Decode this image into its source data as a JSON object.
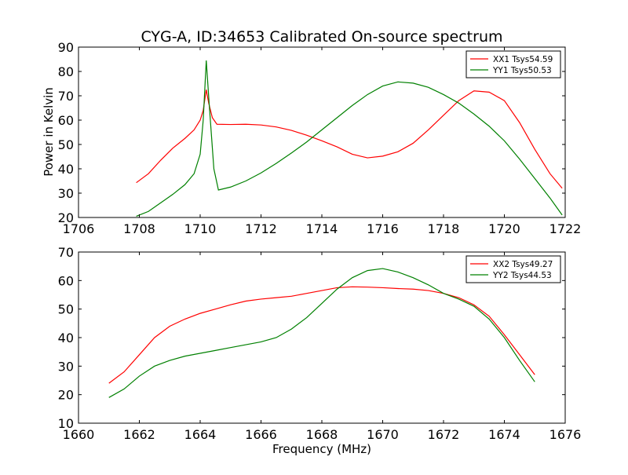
{
  "figure": {
    "title": "CYG-A, ID:34653 Calibrated On-source spectrum",
    "ylabel": "Power in Kelvin",
    "xlabel": "Frequency (MHz)"
  },
  "colors": {
    "red": "#ff0000",
    "green": "#008000"
  },
  "chart_data": [
    {
      "type": "line",
      "title": "CYG-A, ID:34653 Calibrated On-source spectrum",
      "xlabel": "",
      "ylabel": "Power in Kelvin",
      "xlim": [
        1706,
        1722
      ],
      "ylim": [
        20,
        90
      ],
      "xticks": [
        1706,
        1708,
        1710,
        1712,
        1714,
        1716,
        1718,
        1720,
        1722
      ],
      "yticks": [
        20,
        30,
        40,
        50,
        60,
        70,
        80,
        90
      ],
      "legend": "top-right",
      "grid": false,
      "series": [
        {
          "name": "XX1 Tsys54.59",
          "color": "#ff0000",
          "points": [
            [
              1707.9,
              34.3
            ],
            [
              1708.3,
              38
            ],
            [
              1708.7,
              43.5
            ],
            [
              1709.1,
              48.5
            ],
            [
              1709.5,
              52.5
            ],
            [
              1709.8,
              56
            ],
            [
              1710.0,
              60
            ],
            [
              1710.1,
              64
            ],
            [
              1710.2,
              72.5
            ],
            [
              1710.28,
              67
            ],
            [
              1710.4,
              61
            ],
            [
              1710.55,
              58.3
            ],
            [
              1711,
              58.2
            ],
            [
              1711.5,
              58.3
            ],
            [
              1712,
              58
            ],
            [
              1712.5,
              57.2
            ],
            [
              1713,
              55.8
            ],
            [
              1713.5,
              53.8
            ],
            [
              1714,
              51.5
            ],
            [
              1714.5,
              49
            ],
            [
              1715,
              46
            ],
            [
              1715.5,
              44.5
            ],
            [
              1716,
              45.2
            ],
            [
              1716.5,
              47
            ],
            [
              1717,
              50.5
            ],
            [
              1717.5,
              56
            ],
            [
              1718,
              62
            ],
            [
              1718.5,
              68
            ],
            [
              1719,
              72
            ],
            [
              1719.5,
              71.5
            ],
            [
              1720,
              68
            ],
            [
              1720.5,
              59
            ],
            [
              1721,
              48
            ],
            [
              1721.5,
              38
            ],
            [
              1721.9,
              32
            ]
          ]
        },
        {
          "name": "YY1 Tsys50.53",
          "color": "#008000",
          "points": [
            [
              1707.9,
              20.5
            ],
            [
              1708.3,
              22.5
            ],
            [
              1708.7,
              26
            ],
            [
              1709.1,
              29.5
            ],
            [
              1709.5,
              33.5
            ],
            [
              1709.8,
              38
            ],
            [
              1710.0,
              46
            ],
            [
              1710.1,
              60
            ],
            [
              1710.2,
              84.5
            ],
            [
              1710.3,
              66
            ],
            [
              1710.45,
              40
            ],
            [
              1710.6,
              31.3
            ],
            [
              1711,
              32.5
            ],
            [
              1711.5,
              35
            ],
            [
              1712,
              38.3
            ],
            [
              1712.5,
              42.2
            ],
            [
              1713,
              46.5
            ],
            [
              1713.5,
              51
            ],
            [
              1714,
              56
            ],
            [
              1714.5,
              61
            ],
            [
              1715,
              66
            ],
            [
              1715.5,
              70.5
            ],
            [
              1716,
              74
            ],
            [
              1716.5,
              75.7
            ],
            [
              1717,
              75.2
            ],
            [
              1717.5,
              73.5
            ],
            [
              1718,
              70.5
            ],
            [
              1718.5,
              67
            ],
            [
              1719,
              62.5
            ],
            [
              1719.5,
              57.5
            ],
            [
              1720,
              51.5
            ],
            [
              1720.5,
              44
            ],
            [
              1721,
              36
            ],
            [
              1721.5,
              28
            ],
            [
              1721.9,
              21
            ]
          ]
        }
      ]
    },
    {
      "type": "line",
      "title": "",
      "xlabel": "Frequency (MHz)",
      "ylabel": "",
      "xlim": [
        1660,
        1676
      ],
      "ylim": [
        10,
        70
      ],
      "xticks": [
        1660,
        1662,
        1664,
        1666,
        1668,
        1670,
        1672,
        1674,
        1676
      ],
      "yticks": [
        10,
        20,
        30,
        40,
        50,
        60,
        70
      ],
      "legend": "top-right",
      "grid": false,
      "series": [
        {
          "name": "XX2 Tsys49.27",
          "color": "#ff0000",
          "points": [
            [
              1661,
              24
            ],
            [
              1661.5,
              28
            ],
            [
              1662,
              34
            ],
            [
              1662.5,
              40
            ],
            [
              1663,
              44
            ],
            [
              1663.5,
              46.5
            ],
            [
              1664,
              48.5
            ],
            [
              1664.5,
              50
            ],
            [
              1665,
              51.5
            ],
            [
              1665.5,
              52.8
            ],
            [
              1666,
              53.5
            ],
            [
              1666.5,
              54
            ],
            [
              1667,
              54.5
            ],
            [
              1667.5,
              55.5
            ],
            [
              1668,
              56.5
            ],
            [
              1668.5,
              57.5
            ],
            [
              1669,
              57.8
            ],
            [
              1669.5,
              57.7
            ],
            [
              1670,
              57.5
            ],
            [
              1670.5,
              57.2
            ],
            [
              1671,
              57
            ],
            [
              1671.5,
              56.5
            ],
            [
              1672,
              55.5
            ],
            [
              1672.5,
              54
            ],
            [
              1673,
              51.5
            ],
            [
              1673.5,
              47.5
            ],
            [
              1674,
              41
            ],
            [
              1674.5,
              34
            ],
            [
              1675,
              27
            ]
          ]
        },
        {
          "name": "YY2 Tsys44.53",
          "color": "#008000",
          "points": [
            [
              1661,
              19
            ],
            [
              1661.5,
              22
            ],
            [
              1662,
              26.5
            ],
            [
              1662.5,
              30
            ],
            [
              1663,
              32
            ],
            [
              1663.5,
              33.5
            ],
            [
              1664,
              34.5
            ],
            [
              1664.5,
              35.5
            ],
            [
              1665,
              36.5
            ],
            [
              1665.5,
              37.5
            ],
            [
              1666,
              38.5
            ],
            [
              1666.5,
              40
            ],
            [
              1667,
              43
            ],
            [
              1667.5,
              47
            ],
            [
              1668,
              52
            ],
            [
              1668.5,
              57
            ],
            [
              1669,
              61
            ],
            [
              1669.5,
              63.5
            ],
            [
              1670,
              64.2
            ],
            [
              1670.5,
              63
            ],
            [
              1671,
              61
            ],
            [
              1671.5,
              58.5
            ],
            [
              1672,
              55.5
            ],
            [
              1672.5,
              53.5
            ],
            [
              1673,
              51
            ],
            [
              1673.5,
              46.5
            ],
            [
              1674,
              40
            ],
            [
              1674.5,
              32
            ],
            [
              1675,
              24.5
            ]
          ]
        }
      ]
    }
  ]
}
